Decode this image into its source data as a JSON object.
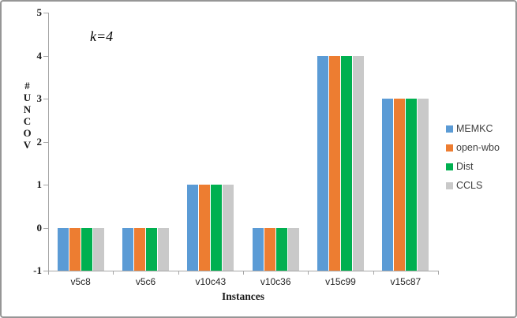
{
  "chart_data": {
    "type": "bar",
    "title": "",
    "annotation": "k=4",
    "xlabel": "Instances",
    "ylabel": "#UNCOV",
    "categories": [
      "v5c8",
      "v5c6",
      "v10c43",
      "v10c36",
      "v15c99",
      "v15c87"
    ],
    "series": [
      {
        "name": "MEMKC",
        "color": "#5B9BD5",
        "values": [
          0,
          0,
          1,
          0,
          4,
          3
        ]
      },
      {
        "name": "open-wbo",
        "color": "#ED7D31",
        "values": [
          0,
          0,
          1,
          0,
          4,
          3
        ]
      },
      {
        "name": "Dist",
        "color": "#00B050",
        "values": [
          0,
          0,
          1,
          0,
          4,
          3
        ]
      },
      {
        "name": "CCLS",
        "color": "#C9C9C9",
        "values": [
          0,
          0,
          1,
          0,
          4,
          3
        ]
      }
    ],
    "ylim": [
      -1,
      5
    ],
    "y_ticks": [
      5,
      4,
      3,
      2,
      1,
      0,
      -1
    ],
    "bar_base": -1,
    "grid": false,
    "legend_position": "right"
  },
  "style_colors": {
    "axis": "#a6a6a6",
    "text": "#262626"
  }
}
